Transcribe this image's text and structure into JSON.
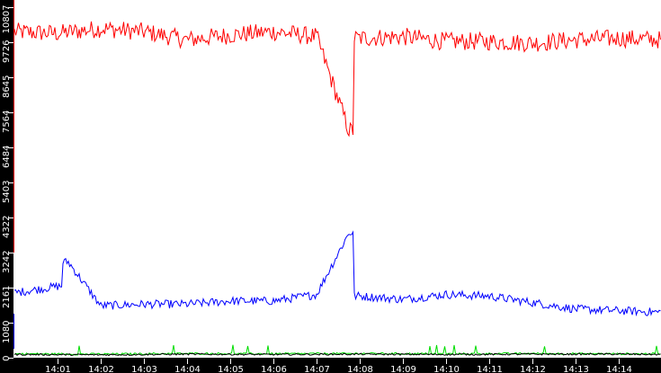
{
  "chart_data": {
    "type": "line",
    "title": "",
    "xlabel": "",
    "ylabel": "",
    "ylim": [
      0,
      10807
    ],
    "grid": false,
    "legend": "none",
    "y_ticks": [
      "0",
      "1080",
      "2161",
      "3242",
      "4322",
      "5403",
      "6484",
      "7564",
      "8645",
      "9726",
      "10807"
    ],
    "x_ticks": [
      "14:01",
      "14:02",
      "14:03",
      "14:04",
      "14:05",
      "14:06",
      "14:07",
      "14:08",
      "14:09",
      "14:10",
      "14:11",
      "14:12",
      "14:13",
      "14:14"
    ],
    "x_range": [
      "~14:00",
      "~14:15"
    ],
    "colors": {
      "series_red": "#ff0000",
      "series_blue": "#0000ff",
      "series_green": "#00dd00",
      "series_black": "#000000",
      "axis_background": "#000000",
      "plot_background": "#ffffff"
    },
    "series": [
      {
        "name": "red",
        "color": "#ff0000",
        "approx_level": 10000,
        "x": [
          "14:00",
          "14:01",
          "14:02",
          "14:03",
          "14:04",
          "14:05",
          "14:06",
          "14:07",
          "14:07:45",
          "14:08",
          "14:09",
          "14:10",
          "14:11",
          "14:12",
          "14:13",
          "14:14",
          "14:15"
        ],
        "values": [
          10050,
          10000,
          10150,
          10050,
          9800,
          9950,
          10050,
          9900,
          7000,
          9850,
          9900,
          9750,
          9750,
          9700,
          9800,
          9850,
          9800
        ]
      },
      {
        "name": "blue",
        "color": "#0000ff",
        "approx_level": 1700,
        "x": [
          "14:00",
          "14:01",
          "14:01:15",
          "14:02",
          "14:03",
          "14:04",
          "14:05",
          "14:06",
          "14:07",
          "14:07:45",
          "14:08",
          "14:09",
          "14:10",
          "14:11",
          "14:12",
          "14:13",
          "14:14",
          "14:15"
        ],
        "values": [
          2000,
          2200,
          2950,
          1600,
          1650,
          1650,
          1750,
          1750,
          1950,
          3850,
          1900,
          1800,
          1950,
          1900,
          1700,
          1500,
          1450,
          1400
        ]
      },
      {
        "name": "green",
        "color": "#00dd00",
        "approx_level": 120,
        "x": [
          "14:00",
          "14:02",
          "14:04",
          "14:06",
          "14:08",
          "14:10",
          "14:12",
          "14:14",
          "14:15"
        ],
        "values": [
          120,
          110,
          130,
          120,
          130,
          120,
          130,
          120,
          120
        ]
      },
      {
        "name": "black",
        "color": "#000000",
        "approx_level": 100,
        "x": [
          "14:00",
          "14:02",
          "14:04",
          "14:06",
          "14:08",
          "14:10",
          "14:12",
          "14:14",
          "14:15"
        ],
        "values": [
          100,
          90,
          110,
          100,
          110,
          100,
          110,
          110,
          100
        ]
      }
    ]
  }
}
